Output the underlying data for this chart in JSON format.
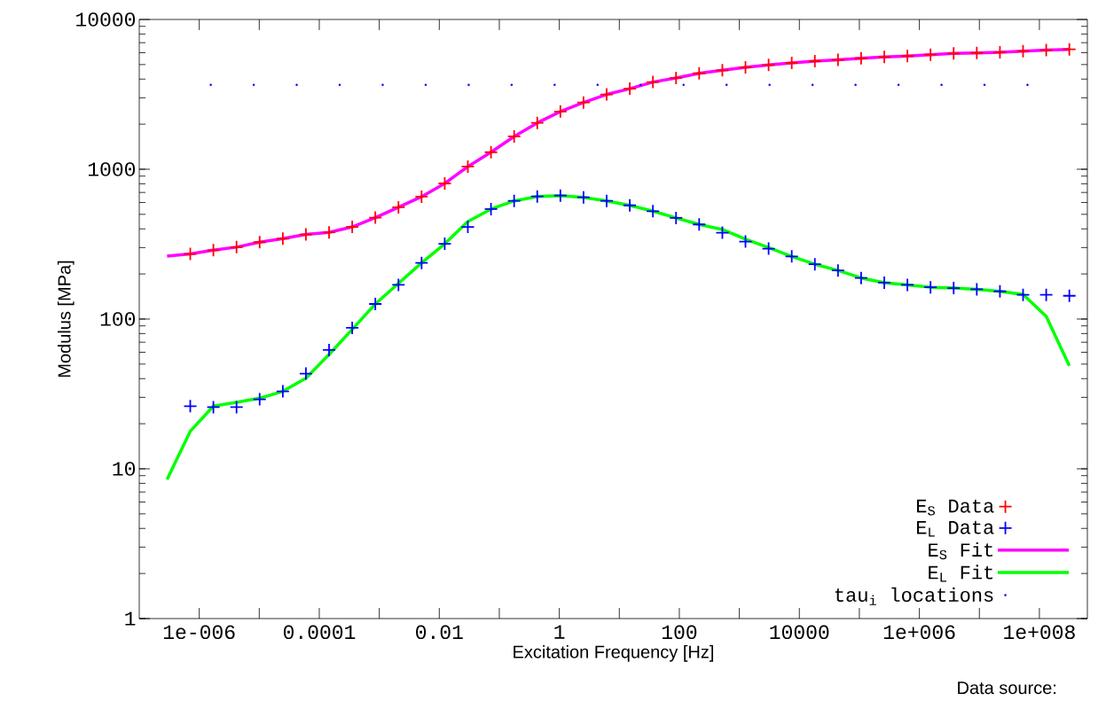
{
  "chart_data": {
    "type": "line",
    "xlabel": "Excitation Frequency [Hz]",
    "ylabel": "Modulus [MPa]",
    "log": "xy",
    "grid": false,
    "legend": "bottom right",
    "xlim": [
      1e-07,
      630000000.0
    ],
    "ylim": [
      1,
      10000
    ],
    "xticks": [
      {
        "value": 1e-06,
        "label": "1e-006"
      },
      {
        "value": 1e-05,
        "label": null
      },
      {
        "value": 0.0001,
        "label": "0.0001"
      },
      {
        "value": 0.001,
        "label": null
      },
      {
        "value": 0.01,
        "label": "0.01"
      },
      {
        "value": 0.1,
        "label": null
      },
      {
        "value": 1,
        "label": "1"
      },
      {
        "value": 10,
        "label": null
      },
      {
        "value": 100,
        "label": "100"
      },
      {
        "value": 1000,
        "label": null
      },
      {
        "value": 10000,
        "label": "10000"
      },
      {
        "value": 100000,
        "label": null
      },
      {
        "value": 1000000.0,
        "label": "1e+006"
      },
      {
        "value": 10000000.0,
        "label": null
      },
      {
        "value": 100000000.0,
        "label": "1e+008"
      }
    ],
    "yticks": [
      1,
      10,
      100,
      1000,
      10000
    ],
    "annotations": [
      "Data source:"
    ],
    "series": [
      {
        "name": "E$_{S}$ Data",
        "type": "scatter",
        "marker": "cross",
        "color": "#ff0000",
        "x": [
          7.08e-07,
          1.72e-06,
          4.18e-06,
          1.015e-05,
          2.47e-05,
          5.99e-05,
          0.0001456,
          0.000354,
          0.000859,
          0.002087,
          0.00507,
          0.01232,
          0.0299,
          0.0727,
          0.1766,
          0.429,
          1.042,
          2.53,
          6.15,
          14.94,
          36.3,
          88.2,
          214,
          521,
          1265,
          3073,
          7464,
          18135,
          44060,
          107000,
          260000,
          631800,
          1535000,
          3728000,
          9057000,
          22000000,
          53460000,
          129900000,
          315500000
        ],
        "values": [
          272,
          288,
          302,
          326,
          344,
          367,
          379,
          412,
          475,
          557,
          656,
          804,
          1042,
          1300,
          1656,
          2040,
          2430,
          2790,
          3160,
          3450,
          3820,
          4070,
          4370,
          4580,
          4790,
          4970,
          5130,
          5270,
          5370,
          5510,
          5620,
          5700,
          5820,
          5930,
          5980,
          6040,
          6150,
          6240,
          6320
        ]
      },
      {
        "name": "E$_{L}$ Data",
        "type": "scatter",
        "marker": "cross",
        "color": "#0000ff",
        "x": [
          7.08e-07,
          1.72e-06,
          4.18e-06,
          1.015e-05,
          2.47e-05,
          5.99e-05,
          0.0001456,
          0.000354,
          0.000859,
          0.002087,
          0.00507,
          0.01232,
          0.0299,
          0.0727,
          0.1766,
          0.429,
          1.042,
          2.53,
          6.15,
          14.94,
          36.3,
          88.2,
          214,
          521,
          1265,
          3073,
          7464,
          18135,
          44060,
          107000,
          260000,
          631800,
          1535000,
          3728000,
          9057000,
          22000000,
          53460000,
          129900000,
          315500000
        ],
        "values": [
          26.2,
          25.8,
          25.8,
          29.1,
          32.9,
          43.2,
          62.1,
          87.3,
          126,
          169,
          237,
          318,
          412,
          542,
          615,
          658,
          667,
          649,
          615,
          574,
          525,
          473,
          428,
          377,
          329,
          295,
          262,
          232,
          211,
          188,
          175,
          169,
          163,
          161,
          158,
          153,
          145,
          145,
          143
        ]
      },
      {
        "name": "E$_{S}$ Fit",
        "marker": "none",
        "color": "#ff00ff",
        "x": [
          2.91e-07,
          7.08e-07,
          1.72e-06,
          4.18e-06,
          1.015e-05,
          2.47e-05,
          5.99e-05,
          0.0001456,
          0.000354,
          0.000859,
          0.002087,
          0.00507,
          0.01232,
          0.0299,
          0.0727,
          0.1766,
          0.429,
          1.042,
          2.53,
          6.15,
          14.94,
          36.3,
          88.2,
          214,
          521,
          1265,
          3073,
          7464,
          18135,
          44060,
          107000,
          260000,
          631800,
          1535000,
          3728000,
          9057000,
          22000000,
          53460000,
          129900000,
          315500000
        ],
        "values": [
          263,
          272,
          288,
          302,
          326,
          344,
          367,
          379,
          412,
          475,
          557,
          656,
          804,
          1042,
          1300,
          1656,
          2040,
          2430,
          2790,
          3160,
          3450,
          3820,
          4070,
          4370,
          4580,
          4790,
          4970,
          5130,
          5270,
          5370,
          5510,
          5620,
          5700,
          5820,
          5930,
          5980,
          6040,
          6150,
          6240,
          6320
        ]
      },
      {
        "name": "E$_{L}$ Fit",
        "marker": "none",
        "color": "#00ff00",
        "x": [
          2.91e-07,
          7.08e-07,
          1.72e-06,
          4.18e-06,
          1.015e-05,
          2.47e-05,
          5.99e-05,
          0.0001456,
          0.000354,
          0.000859,
          0.002087,
          0.00507,
          0.01232,
          0.0299,
          0.0727,
          0.1766,
          0.429,
          1.042,
          2.53,
          6.15,
          14.94,
          36.3,
          88.2,
          214,
          521,
          1265,
          3073,
          7464,
          18135,
          44060,
          107000,
          260000,
          631800,
          1535000,
          3728000,
          9057000,
          22000000,
          53460000,
          129900000,
          315500000
        ],
        "values": [
          8.5,
          17.8,
          26.2,
          27.8,
          29.6,
          32.9,
          40.3,
          58,
          85.3,
          126,
          173,
          237,
          318,
          448,
          542,
          615,
          658,
          667,
          649,
          615,
          574,
          525,
          473,
          428,
          396,
          341,
          300,
          262,
          232,
          211,
          188,
          175,
          169,
          163,
          161,
          158,
          153,
          146,
          104,
          48.7
        ]
      },
      {
        "name": "tau$_{i}$ locations",
        "type": "scatter",
        "marker": "circle",
        "color": "#0000ff",
        "x": [
          1.556e-06,
          8.1e-06,
          4.21e-05,
          0.000219,
          0.00114,
          0.00594,
          0.0309,
          0.1607,
          0.836,
          4.35,
          22.6,
          117.8,
          613,
          3190,
          16600,
          86400,
          449700,
          2339000,
          12170000,
          63340000
        ],
        "values": [
          3660,
          3660,
          3660,
          3660,
          3660,
          3660,
          3660,
          3660,
          3660,
          3660,
          3660,
          3660,
          3660,
          3660,
          3660,
          3660,
          3660,
          3660,
          3660,
          3660
        ]
      }
    ]
  }
}
